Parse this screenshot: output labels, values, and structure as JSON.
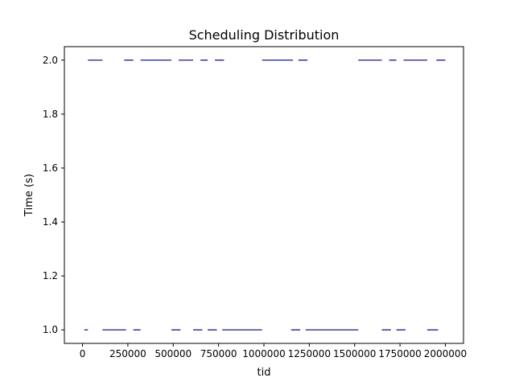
{
  "chart_data": {
    "type": "scatter",
    "title": "Scheduling Distribution",
    "xlabel": "tid",
    "ylabel": "Time (s)",
    "xlim": [
      -100000,
      2100000
    ],
    "ylim": [
      0.95,
      2.05
    ],
    "x_ticks": [
      0,
      250000,
      500000,
      750000,
      1000000,
      1250000,
      1500000,
      1750000,
      2000000
    ],
    "x_tick_labels": [
      "0",
      "250000",
      "500000",
      "750000",
      "1000000",
      "1250000",
      "1500000",
      "1750000",
      "2000000"
    ],
    "y_ticks": [
      1.0,
      1.2,
      1.4,
      1.6,
      1.8,
      2.0
    ],
    "y_tick_labels": [
      "1.0",
      "1.2",
      "1.4",
      "1.6",
      "1.8",
      "2.0"
    ],
    "grid": false,
    "legend": "none",
    "marker_color": "#000080",
    "series": [
      {
        "y": 1.0,
        "segments": [
          [
            10000,
            30000
          ],
          [
            110000,
            240000
          ],
          [
            280000,
            320000
          ],
          [
            490000,
            540000
          ],
          [
            610000,
            660000
          ],
          [
            690000,
            740000
          ],
          [
            770000,
            990000
          ],
          [
            1150000,
            1200000
          ],
          [
            1230000,
            1520000
          ],
          [
            1650000,
            1700000
          ],
          [
            1730000,
            1780000
          ],
          [
            1900000,
            1960000
          ]
        ]
      },
      {
        "y": 2.0,
        "segments": [
          [
            30000,
            110000
          ],
          [
            230000,
            280000
          ],
          [
            320000,
            490000
          ],
          [
            530000,
            610000
          ],
          [
            650000,
            690000
          ],
          [
            730000,
            780000
          ],
          [
            990000,
            1160000
          ],
          [
            1190000,
            1240000
          ],
          [
            1520000,
            1650000
          ],
          [
            1690000,
            1730000
          ],
          [
            1770000,
            1900000
          ],
          [
            1950000,
            2000000
          ]
        ]
      }
    ]
  }
}
